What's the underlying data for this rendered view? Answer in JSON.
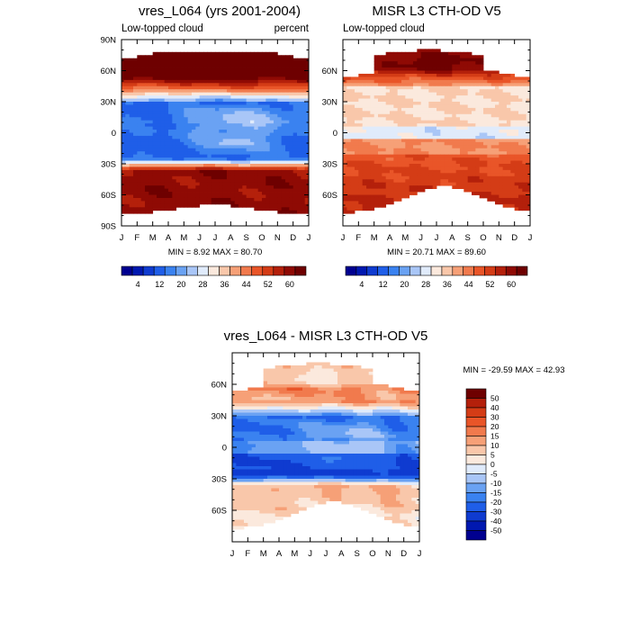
{
  "figure": {
    "panels": [
      {
        "id": "top-left",
        "title": "vres_L064 (yrs 2001-2004)",
        "subtitle_left": "Low-topped cloud",
        "subtitle_right": "percent",
        "stats": "MIN =  8.92 MAX =  80.70",
        "y_ticks": [
          {
            "lat": 90,
            "label": "90N"
          },
          {
            "lat": 60,
            "label": "60N"
          },
          {
            "lat": 30,
            "label": "30N"
          },
          {
            "lat": 0,
            "label": "0"
          },
          {
            "lat": -30,
            "label": "30S"
          },
          {
            "lat": -60,
            "label": "60S"
          },
          {
            "lat": -90,
            "label": "90S"
          }
        ],
        "x_ticks": [
          "J",
          "F",
          "M",
          "A",
          "M",
          "J",
          "J",
          "A",
          "S",
          "O",
          "N",
          "D",
          "J"
        ],
        "field": "model",
        "mask": "model"
      },
      {
        "id": "top-right",
        "title": "MISR L3 CTH-OD V5",
        "subtitle_left": "Low-topped cloud",
        "subtitle_right": "",
        "stats": "MIN =  20.71 MAX =  89.60",
        "y_ticks": [
          {
            "lat": 60,
            "label": "60N"
          },
          {
            "lat": 30,
            "label": "30N"
          },
          {
            "lat": 0,
            "label": "0"
          },
          {
            "lat": -30,
            "label": "30S"
          },
          {
            "lat": -60,
            "label": "60S"
          }
        ],
        "x_ticks": [
          "J",
          "F",
          "M",
          "A",
          "M",
          "J",
          "J",
          "A",
          "S",
          "O",
          "N",
          "D",
          "J"
        ],
        "field": "obs",
        "mask": "obs"
      },
      {
        "id": "bottom",
        "title": "vres_L064 - MISR L3 CTH-OD V5",
        "subtitle_left": "",
        "subtitle_right": "",
        "stats": "MIN = -29.59 MAX =  42.93",
        "y_ticks": [
          {
            "lat": 60,
            "label": "60N"
          },
          {
            "lat": 30,
            "label": "30N"
          },
          {
            "lat": 0,
            "label": "0"
          },
          {
            "lat": -30,
            "label": "30S"
          },
          {
            "lat": -60,
            "label": "60S"
          }
        ],
        "x_ticks": [
          "J",
          "F",
          "M",
          "A",
          "M",
          "J",
          "J",
          "A",
          "S",
          "O",
          "N",
          "D",
          "J"
        ],
        "field": "diff",
        "mask": "obs"
      }
    ],
    "colorbar_abs": {
      "labels": [
        "4",
        "12",
        "20",
        "28",
        "36",
        "44",
        "52",
        "60"
      ],
      "colors": [
        "#000090",
        "#0018b0",
        "#0f3bd0",
        "#1f5ee8",
        "#3a82f0",
        "#6aa2f3",
        "#a9c6f7",
        "#e0ebfb",
        "#fbe9dd",
        "#f9c7aa",
        "#f6a077",
        "#f17a4d",
        "#e95528",
        "#d43c16",
        "#b4200b",
        "#8f0a04",
        "#6e0000"
      ]
    },
    "colorbar_diff": {
      "labels": [
        "50",
        "40",
        "30",
        "20",
        "15",
        "10",
        "5",
        "0",
        "-5",
        "-10",
        "-15",
        "-20",
        "-30",
        "-40",
        "-50"
      ],
      "colors": [
        "#6e0000",
        "#b4200b",
        "#d43c16",
        "#e95528",
        "#f17a4d",
        "#f6a077",
        "#f9c7aa",
        "#fbe9dd",
        "#e0ebfb",
        "#a9c6f7",
        "#6aa2f3",
        "#3a82f0",
        "#1f5ee8",
        "#0f3bd0",
        "#0018b0",
        "#000090"
      ]
    }
  },
  "chart_data": [
    {
      "type": "heatmap",
      "title": "vres_L064 (yrs 2001-2004)",
      "subtitle": "Low-topped cloud",
      "units": "percent",
      "x": [
        "J",
        "F",
        "M",
        "A",
        "M",
        "J",
        "J",
        "A",
        "S",
        "O",
        "N",
        "D",
        "J"
      ],
      "y": [
        "90S",
        "60S",
        "30S",
        "0",
        "30N",
        "60N",
        "90N"
      ],
      "ylim": [
        -90,
        90
      ],
      "min": 8.92,
      "max": 80.7,
      "samples_lat": [
        75,
        60,
        45,
        30,
        15,
        0,
        -15,
        -30,
        -45,
        -60,
        -75
      ],
      "samples_value": [
        62,
        56,
        38,
        20,
        12,
        16,
        22,
        42,
        62,
        66,
        62
      ]
    },
    {
      "type": "heatmap",
      "title": "MISR L3 CTH-OD V5",
      "subtitle": "Low-topped cloud",
      "x": [
        "J",
        "F",
        "M",
        "A",
        "M",
        "J",
        "J",
        "A",
        "S",
        "O",
        "N",
        "D",
        "J"
      ],
      "y": [
        "60S",
        "30S",
        "0",
        "30N",
        "60N"
      ],
      "min": 20.71,
      "max": 89.6,
      "samples_lat": [
        75,
        60,
        45,
        30,
        15,
        0,
        -15,
        -30,
        -45,
        -60,
        -75
      ],
      "samples_value": [
        60,
        48,
        40,
        37,
        36,
        34,
        47,
        46,
        50,
        54,
        56
      ]
    },
    {
      "type": "heatmap",
      "title": "vres_L064 - MISR L3 CTH-OD V5",
      "x": [
        "J",
        "F",
        "M",
        "A",
        "M",
        "J",
        "J",
        "A",
        "S",
        "O",
        "N",
        "D",
        "J"
      ],
      "y": [
        "60S",
        "30S",
        "0",
        "30N",
        "60N"
      ],
      "min": -29.59,
      "max": 42.93,
      "samples_lat": [
        75,
        60,
        45,
        30,
        15,
        0,
        -15,
        -30,
        -45,
        -60,
        -75
      ],
      "samples_value": [
        5,
        8,
        -2,
        -17,
        -24,
        -18,
        -25,
        -5,
        12,
        12,
        6
      ]
    }
  ]
}
